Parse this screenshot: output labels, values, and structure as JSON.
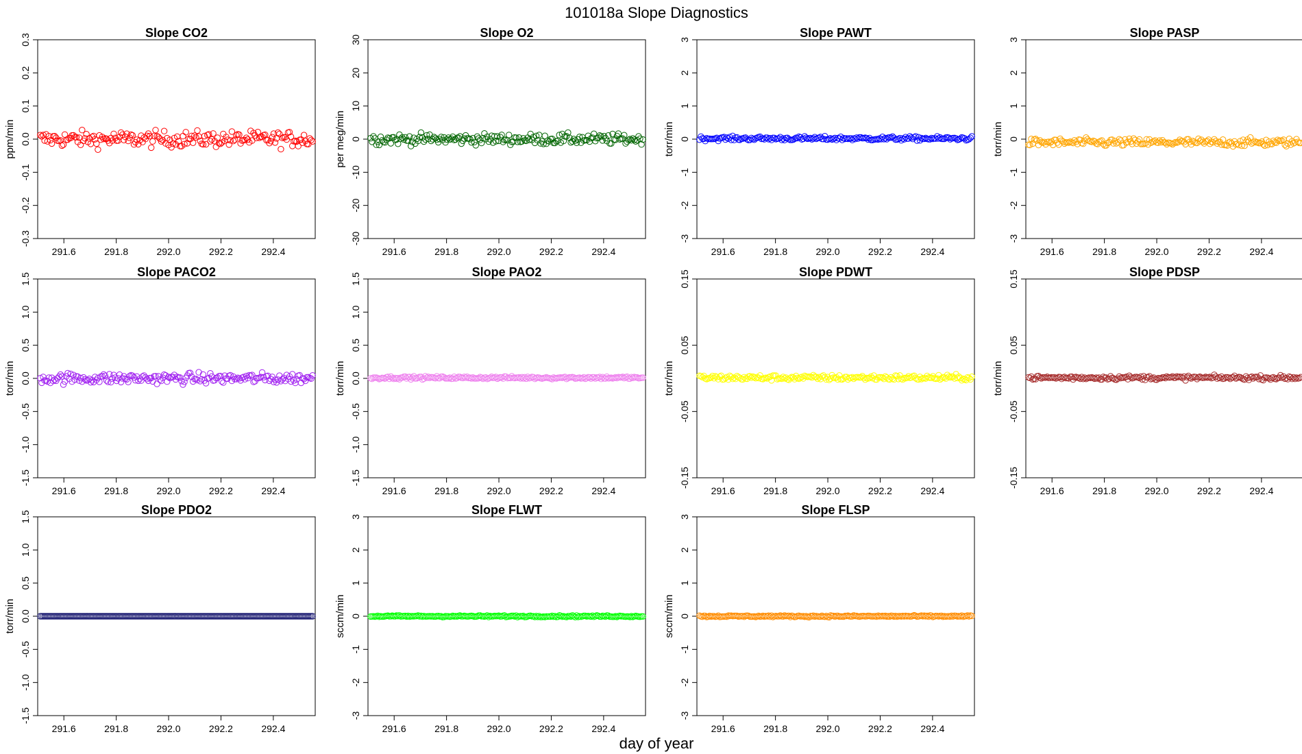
{
  "figure": {
    "title": "101018a   Slope Diagnostics",
    "xlabel": "day of year"
  },
  "chart_data": [
    {
      "type": "scatter",
      "title": "Slope CO2",
      "ylabel": "ppm/min",
      "color": "#ff0000",
      "xlim": [
        291.5,
        292.56
      ],
      "ylim": [
        -0.3,
        0.3
      ],
      "yticks": [
        "-0.3",
        "-0.2",
        "-0.1",
        "0.0",
        "0.1",
        "0.2",
        "0.3"
      ],
      "xticks": [
        "291.6",
        "291.8",
        "292.0",
        "292.2",
        "292.4"
      ],
      "center": 0,
      "spread": 0.012,
      "pattern": "noise"
    },
    {
      "type": "scatter",
      "title": "Slope O2",
      "ylabel": "per meg/min",
      "color": "#006400",
      "xlim": [
        291.5,
        292.56
      ],
      "ylim": [
        -30,
        30
      ],
      "yticks": [
        "-30",
        "-20",
        "-10",
        "0",
        "10",
        "20",
        "30"
      ],
      "xticks": [
        "291.6",
        "291.8",
        "292.0",
        "292.2",
        "292.4"
      ],
      "center": 0,
      "spread": 0.8,
      "pattern": "noise"
    },
    {
      "type": "scatter",
      "title": "Slope PAWT",
      "ylabel": "torr/min",
      "color": "#0000ff",
      "xlim": [
        291.5,
        292.56
      ],
      "ylim": [
        -3,
        3
      ],
      "yticks": [
        "-3",
        "-2",
        "-1",
        "0",
        "1",
        "2",
        "3"
      ],
      "xticks": [
        "291.6",
        "291.8",
        "292.0",
        "292.2",
        "292.4"
      ],
      "center": 0.02,
      "spread": 0.03,
      "pattern": "noise"
    },
    {
      "type": "scatter",
      "title": "Slope PASP",
      "ylabel": "torr/min",
      "color": "#ffa500",
      "xlim": [
        291.5,
        292.56
      ],
      "ylim": [
        -3,
        3
      ],
      "yticks": [
        "-3",
        "-2",
        "-1",
        "0",
        "1",
        "2",
        "3"
      ],
      "xticks": [
        "291.6",
        "291.8",
        "292.0",
        "292.2",
        "292.4"
      ],
      "center": -0.1,
      "spread": 0.06,
      "pattern": "noise"
    },
    {
      "type": "scatter",
      "title": "Slope PACO2",
      "ylabel": "torr/min",
      "color": "#a020f0",
      "xlim": [
        291.5,
        292.56
      ],
      "ylim": [
        -1.5,
        1.5
      ],
      "yticks": [
        "-1.5",
        "-1.0",
        "-0.5",
        "0.0",
        "0.5",
        "1.0",
        "1.5"
      ],
      "xticks": [
        "291.6",
        "291.8",
        "292.0",
        "292.2",
        "292.4"
      ],
      "center": 0,
      "spread": 0.04,
      "pattern": "noise"
    },
    {
      "type": "scatter",
      "title": "Slope PAO2",
      "ylabel": "torr/min",
      "color": "#ee82ee",
      "xlim": [
        291.5,
        292.56
      ],
      "ylim": [
        -1.5,
        1.5
      ],
      "yticks": [
        "-1.5",
        "-1.0",
        "-0.5",
        "0.0",
        "0.5",
        "1.0",
        "1.5"
      ],
      "xticks": [
        "291.6",
        "291.8",
        "292.0",
        "292.2",
        "292.4"
      ],
      "center": 0.01,
      "spread": 0.01,
      "pattern": "noise"
    },
    {
      "type": "scatter",
      "title": "Slope PDWT",
      "ylabel": "torr/min",
      "color": "#ffff00",
      "xlim": [
        291.5,
        292.56
      ],
      "ylim": [
        -0.15,
        0.15
      ],
      "yticks": [
        "-0.15",
        "-0.05",
        "0.05",
        "0.15"
      ],
      "xticks": [
        "291.6",
        "291.8",
        "292.0",
        "292.2",
        "292.4"
      ],
      "center": 0.001,
      "spread": 0.002,
      "pattern": "noise"
    },
    {
      "type": "scatter",
      "title": "Slope PDSP",
      "ylabel": "torr/min",
      "color": "#a52a2a",
      "xlim": [
        291.5,
        292.56
      ],
      "ylim": [
        -0.15,
        0.15
      ],
      "yticks": [
        "-0.15",
        "-0.05",
        "0.05",
        "0.15"
      ],
      "xticks": [
        "291.6",
        "291.8",
        "292.0",
        "292.2",
        "292.4"
      ],
      "center": 0.001,
      "spread": 0.0015,
      "pattern": "noise"
    },
    {
      "type": "scatter",
      "title": "Slope PDO2",
      "ylabel": "torr/min",
      "color": "#191970",
      "xlim": [
        291.5,
        292.56
      ],
      "ylim": [
        -1.5,
        1.5
      ],
      "yticks": [
        "-1.5",
        "-1.0",
        "-0.5",
        "0.0",
        "0.5",
        "1.0",
        "1.5"
      ],
      "xticks": [
        "291.6",
        "291.8",
        "292.0",
        "292.2",
        "292.4"
      ],
      "center": 0,
      "spread": 0.0,
      "pattern": "flat"
    },
    {
      "type": "scatter",
      "title": "Slope FLWT",
      "ylabel": "sccm/min",
      "color": "#00ff00",
      "xlim": [
        291.5,
        292.56
      ],
      "ylim": [
        -3,
        3
      ],
      "yticks": [
        "-3",
        "-2",
        "-1",
        "0",
        "1",
        "2",
        "3"
      ],
      "xticks": [
        "291.6",
        "291.8",
        "292.0",
        "292.2",
        "292.4"
      ],
      "center": 0,
      "spread": 0.012,
      "pattern": "noise"
    },
    {
      "type": "scatter",
      "title": "Slope FLSP",
      "ylabel": "sccm/min",
      "color": "#ff8c00",
      "xlim": [
        291.5,
        292.56
      ],
      "ylim": [
        -3,
        3
      ],
      "yticks": [
        "-3",
        "-2",
        "-1",
        "0",
        "1",
        "2",
        "3"
      ],
      "xticks": [
        "291.6",
        "291.8",
        "292.0",
        "292.2",
        "292.4"
      ],
      "center": 0,
      "spread": 0.012,
      "pattern": "noise"
    }
  ]
}
